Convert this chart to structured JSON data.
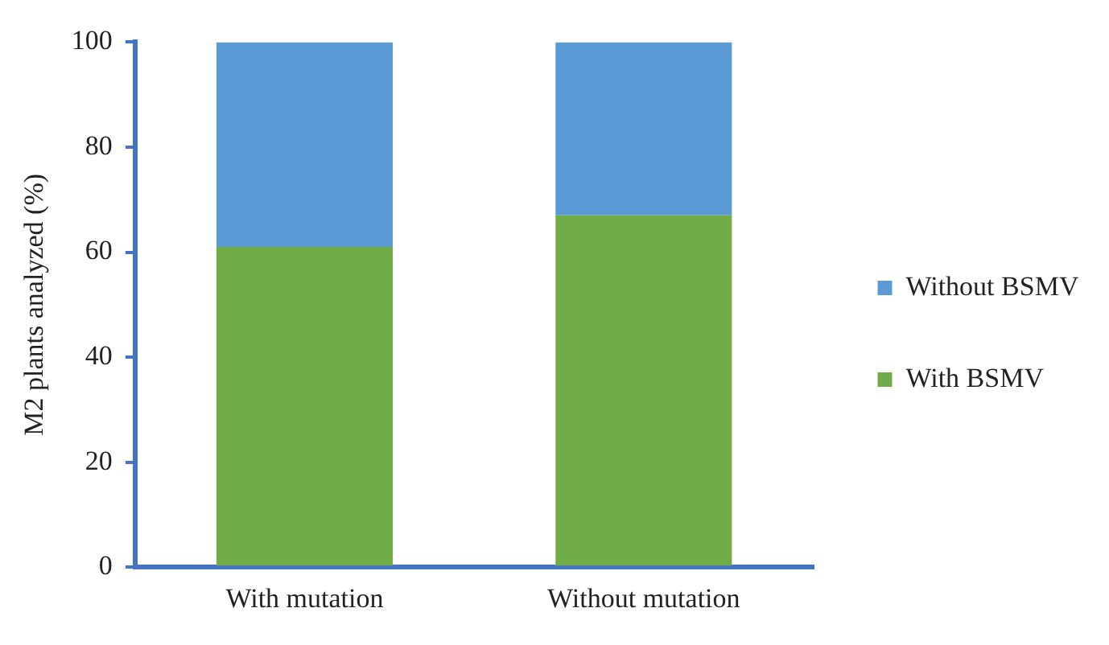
{
  "chart_data": {
    "type": "bar",
    "ylabel": "M2 plants analyzed (%)",
    "categories": [
      "With mutation",
      "Without mutation"
    ],
    "series": [
      {
        "name": "With BSMV",
        "color": "#70ad47",
        "values": [
          61,
          67
        ]
      },
      {
        "name": "Without BSMV",
        "color": "#5b9bd5",
        "values": [
          39,
          33
        ]
      }
    ],
    "stacked": true,
    "ylim": [
      0,
      100
    ],
    "yticks": [
      0,
      20,
      40,
      60,
      80,
      100
    ],
    "grid": false,
    "legend": "right"
  }
}
